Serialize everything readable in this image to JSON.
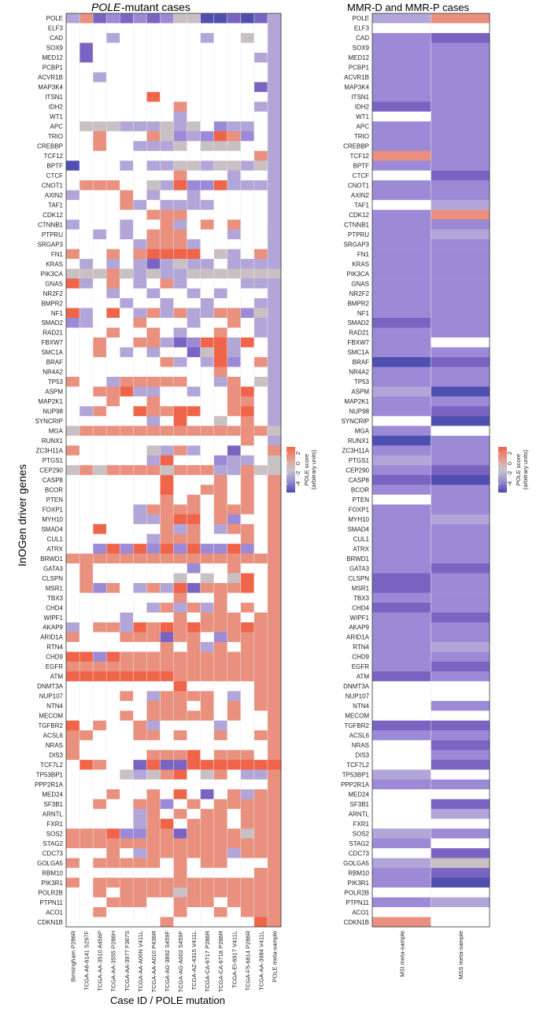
{
  "chart_data": [
    {
      "type": "heatmap",
      "title": "POLE-mutant cases",
      "title_italic_part": "POLE",
      "title_rest": "-mutant cases",
      "ylabel": "InOGen driver genes",
      "xlabel": "Case ID / POLE mutation",
      "columns": [
        "Birmingham P286R",
        "TCGA-A6-6141 S297F",
        "TCGA-AA-3510 A456P",
        "TCGA-AA-3555 P286H",
        "TCGA-AA-3977 F367S",
        "TCGA-AA-A00N V411L",
        "TCGA-AA-A010 P436R",
        "TCGA-AG-3892 S459F",
        "TCGA-AG-A002 S459F",
        "TCGA-AZ-4315 V411L",
        "TCGA-CA-6717 P286R",
        "TCGA-CA-6718 P286R",
        "TCGA-EI-6917 V411L",
        "TCGA-F5-6814 P286R",
        "TCGA-AA-3984 V411L",
        "POLE meta-sample"
      ],
      "rows": [
        "POLE",
        "ELF3",
        "CAD",
        "SOX9",
        "MED12",
        "PCBP1",
        "ACVR1B",
        "MAP3K4",
        "ITSN1",
        "IDH2",
        "WT1",
        "APC",
        "TRIO",
        "CREBBP",
        "TCF12",
        "BPTF",
        "CTCF",
        "CNOT1",
        "AXIN2",
        "TAF1",
        "CDK12",
        "CTNNB1",
        "PTPRU",
        "SRGAP3",
        "FN1",
        "KRAS",
        "PIK3CA",
        "GNAS",
        "NR2F2",
        "BMPR2",
        "NF1",
        "SMAD2",
        "RAD21",
        "FBXW7",
        "SMC1A",
        "BRAF",
        "NR4A2",
        "TP53",
        "ASPM",
        "MAP2K1",
        "NUP98",
        "SYNCRIP",
        "MGA",
        "RUNX1",
        "ZC3H11A",
        "PTGS1",
        "CEP290",
        "CASP8",
        "BCOR",
        "PTEN",
        "FOXP1",
        "MYH10",
        "SMAD4",
        "CUL1",
        "ATRX",
        "BRWD1",
        "GATA3",
        "CLSPN",
        "MSR1",
        "TBX3",
        "CHD4",
        "WIPF1",
        "AKAP9",
        "ARID1A",
        "RTN4",
        "CHD9",
        "EGFR",
        "ATM",
        "DNMT3A",
        "NUP107",
        "NTN4",
        "MECOM",
        "TGFBR2",
        "ACSL6",
        "NRAS",
        "DIS3",
        "TCF7L2",
        "TP53BP1",
        "PPP2R1A",
        "MED24",
        "SF3B1",
        "ARNTL",
        "FXR1",
        "SOS2",
        "STAG2",
        "CDC73",
        "GOLGA5",
        "RBM10",
        "PIK3R1",
        "POLR2B",
        "PTPN11",
        "ACO1",
        "CDKN1B"
      ],
      "values_encoding": "one string per row; one char per column; W = no data (white), a..g = POLE score bins from 2.5 down to -4.5",
      "values": [
        "dbfefefeccggfgfd",
        "WWWWWWWWWWWWWWWd",
        "WWWdWWWWWWdWWcWd",
        "WfWWWWWWWWWWWWWd",
        "WfWWWWWWWWWWWWdd",
        "WWWWWWWWWWWWWWWd",
        "WWdWWWWWWWWWWWWd",
        "WWWWWWWWWWWWWWfd",
        "WWWWWWaWWWWWWWWd",
        "WWWWWWWWbWWWWWdd",
        "WWWWWWWWdWWWWWWd",
        "WcccdddcdcWeddWd",
        "WWbWWWbcedeabeWd",
        "WWbWWdddcWcccWWd",
        "WWWWWWWWWWWWWWbd",
        "gWWWdWddccdccdcd",
        "WWWWWWWWbWWWdWWd",
        "WbbbWWcdaeeadddd",
        "dWWWbWdWWdWWWWWd",
        "WWWWbdWddddWWWWd",
        "WWWWWWbbbWWWWWWd",
        "dWWWdWWbdWbWbWWd",
        "WWdWdWbbbWWWdWWd",
        "WWWWWdbbbdWWWWWd",
        "bWWbWbaaaaWcdWbd",
        "WdWdWdfdcddWdddd",
        "cccbcdcddccccccc",
        "adWbWdWbdWWWWddd",
        "WWWdWWdWWdWdWWWd",
        "WWWWdWWdWWdWWWdd",
        "adWaWdbdbddbbecd",
        "edWWWbWWWdWWbWdd",
        "WWWbWWbWdWWbWWdd",
        "WWbWWbbdfeaadaWd",
        "WWbWdWdWWfcadWWd",
        "WWWWWWWbdWdaeWbd",
        "WWWWWWWWWWWbWWWd",
        "bWWdbbbbbWWdbWcd",
        "WWbbaddWWdWWbaWd",
        "WWWbWWbWWWWWbbWd",
        "WdbWWabbaaWWbaWd",
        "WWWWWWdWaWWcWbWd",
        "cbbbbbbbbbbbbbbc",
        "WWWWWWWWWWWWWbWd",
        "bWWWWWcdbdWWfWWb",
        "WWWWWWdaWWWeddWc",
        "cbcbbbbcbbbddbcc",
        "WWWWWWWaWWWbWbWb",
        "WWWWWWWaWWbbWbWb",
        "WWWWWWWbWbWbWbWb",
        "WWWWWdbbbbWbbbWb",
        "WWWWWddbaaWbeWWb",
        "WWaWWWWbdbWdbbWb",
        "WWWWWWdbbbWWWbWb",
        "WWeaeaeaeaeeaeWb",
        "bbbbbbbbbbbbbbbb",
        "WbWWWWWWWeWWbWWb",
        "WbWWWWWWcWcWcaWb",
        "WbebWdbdafbbbaWb",
        "WWWWWWWWbWWbWWWb",
        "WWWWWWdbdbdbWbWb",
        "WWWWdWWWbWbbbWbb",
        "dWbbdabababbbabb",
        "bWWWbbbfbbWebbbb",
        "WWWWWWWbWbdbWbbb",
        "aaeabbbbbbbbbbbb",
        "bbbbbbbbbbbbbbbb",
        "aaaaaaaabbbbbbbb",
        "WWWWWWWWaWWWWWbb",
        "WWWWbWdbbbbWdWbb",
        "WWWWWWbbbWbWbWbb",
        "WWWWbWbbbbbWbWWb",
        "aWbWWbdWWWWdWWWb",
        "bbWWWbbWbWWbWWbb",
        "bWWWWWWWWWWWWWWb",
        "bWWWWWbbbaWbbbWb",
        "WabWWfaffaaaaaaa",
        "WWWWcdcbaWcbWddb",
        "WWWWWWWWWWWWWWWb",
        "WWWbWWbWaWfWbdbb",
        "WWbWWbbeWbWbbbbb",
        "WWWWWdbWbWbbWbbb",
        "WWWWWdbaWbbbWbbb",
        "bbbaeebbfbbbbcbb",
        "bbbbbbbbbbbbbbbb",
        "WWWbWdbbbbbbdbbb",
        "bWbbbbbWbWbbWWWb",
        "WWWWWWWWbWWWWWbb",
        "bWbbbbbbbbbbbbbb",
        "WWbWbbbbcbbbbbbb",
        "WWWbbbWWbbbWbbbb",
        "WWbWWWWWbWWbWbbb",
        "WWWWWWWbWWWWWWab"
      ],
      "legend_title": "POLE score (arbitrary units)",
      "legend_ticks": [
        "2",
        "0",
        "-2",
        "-4"
      ]
    },
    {
      "type": "heatmap",
      "title": "MMR-D and MMR-P cases",
      "columns": [
        "MSI meta-sample",
        "MSS meta-sample"
      ],
      "rows": [
        "POLE",
        "ELF3",
        "CAD",
        "SOX9",
        "MED12",
        "PCBP1",
        "ACVR1B",
        "MAP3K4",
        "ITSN1",
        "IDH2",
        "WT1",
        "APC",
        "TRIO",
        "CREBBP",
        "TCF12",
        "BPTF",
        "CTCF",
        "CNOT1",
        "AXIN2",
        "TAF1",
        "CDK12",
        "CTNNB1",
        "PTPRU",
        "SRGAP3",
        "FN1",
        "KRAS",
        "PIK3CA",
        "GNAS",
        "NR2F2",
        "BMPR2",
        "NF1",
        "SMAD2",
        "RAD21",
        "FBXW7",
        "SMC1A",
        "BRAF",
        "NR4A2",
        "TP53",
        "ASPM",
        "MAP2K1",
        "NUP98",
        "SYNCRIP",
        "MGA",
        "RUNX1",
        "ZC3H11A",
        "PTGS1",
        "CEP290",
        "CASP8",
        "BCOR",
        "PTEN",
        "FOXP1",
        "MYH10",
        "SMAD4",
        "CUL1",
        "ATRX",
        "BRWD1",
        "GATA3",
        "CLSPN",
        "MSR1",
        "TBX3",
        "CHD4",
        "WIPF1",
        "AKAP9",
        "ARID1A",
        "RTN4",
        "CHD9",
        "EGFR",
        "ATM",
        "DNMT3A",
        "NUP107",
        "NTN4",
        "MECOM",
        "TGFBR2",
        "ACSL6",
        "NRAS",
        "DIS3",
        "TCF7L2",
        "TP53BP1",
        "PPP2R1A",
        "MED24",
        "SF3B1",
        "ARNTL",
        "FXR1",
        "SOS2",
        "STAG2",
        "CDC73",
        "GOLGA5",
        "RBM10",
        "PIK3R1",
        "POLR2B",
        "PTPN11",
        "ACO1",
        "CDKN1B"
      ],
      "values_encoding": "same as first panel",
      "values": [
        "db",
        "WW",
        "ef",
        "ee",
        "ee",
        "ee",
        "ee",
        "ee",
        "ee",
        "fe",
        "We",
        "ee",
        "ee",
        "ee",
        "be",
        "ee",
        "Wf",
        "ee",
        "ee",
        "Wd",
        "eb",
        "ee",
        "ed",
        "ee",
        "ee",
        "ee",
        "ee",
        "ee",
        "ee",
        "ee",
        "ee",
        "fe",
        "ee",
        "eW",
        "ee",
        "gf",
        "ee",
        "ee",
        "dg",
        "ee",
        "ef",
        "Wg",
        "eW",
        "ge",
        "ee",
        "de",
        "ef",
        "fg",
        "ee",
        "We",
        "ee",
        "ed",
        "ee",
        "ee",
        "ee",
        "ee",
        "ef",
        "fe",
        "fe",
        "ee",
        "fe",
        "ef",
        "ee",
        "ee",
        "ed",
        "ee",
        "ef",
        "fe",
        "WW",
        "WW",
        "We",
        "WW",
        "ff",
        "ee",
        "Wf",
        "We",
        "Wf",
        "dW",
        "ee",
        "WW",
        "Wf",
        "Wd",
        "WW",
        "de",
        "eW",
        "Wf",
        "dc",
        "ef",
        "eg",
        "WW",
        "ed",
        "WW",
        "bW"
      ],
      "legend_title": "POLE score (arbitrary units)",
      "legend_ticks": [
        "2",
        "0",
        "-2",
        "-4"
      ]
    }
  ],
  "colors": {
    "a": "#f0644a",
    "b": "#e9907f",
    "c": "#c9c0c3",
    "d": "#b2a6d9",
    "e": "#9c8ad7",
    "f": "#7a64c2",
    "g": "#4f4fb0",
    "W": "#ffffff"
  },
  "legend_gradient": [
    "#f0644a",
    "#e69a8d",
    "#c8c6ca",
    "#9a8ed3",
    "#4b4aa8"
  ]
}
